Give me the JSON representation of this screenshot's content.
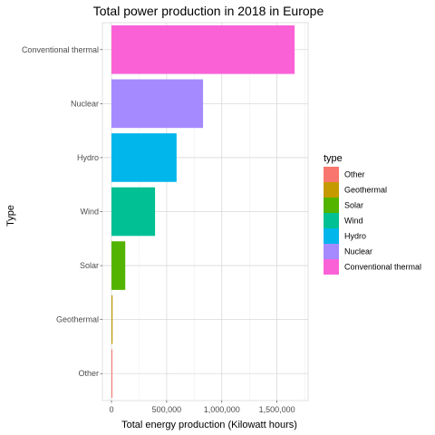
{
  "chart_data": {
    "type": "bar",
    "orientation": "horizontal",
    "title": "Total power production in 2018 in Europe",
    "xlabel": "Total energy production (Kilowatt hours)",
    "ylabel": "Type",
    "xlim": [
      0,
      1700000
    ],
    "x_ticks": [
      0,
      500000,
      1000000,
      1500000
    ],
    "x_tick_labels": [
      "0",
      "500,000",
      "1,000,000",
      "1,500,000"
    ],
    "grid": true,
    "categories": [
      "Conventional thermal",
      "Nuclear",
      "Hydro",
      "Wind",
      "Solar",
      "Geothermal",
      "Other"
    ],
    "values": [
      1660000,
      830000,
      590000,
      395000,
      125000,
      10000,
      3000
    ],
    "colors": {
      "Other": "#F8766D",
      "Geothermal": "#C49A00",
      "Solar": "#53B400",
      "Wind": "#00C094",
      "Hydro": "#00B6EB",
      "Nuclear": "#A58AFF",
      "Conventional thermal": "#FB61D7"
    },
    "legend": {
      "title": "type",
      "position": "right",
      "entries": [
        "Other",
        "Geothermal",
        "Solar",
        "Wind",
        "Hydro",
        "Nuclear",
        "Conventional thermal"
      ]
    }
  }
}
